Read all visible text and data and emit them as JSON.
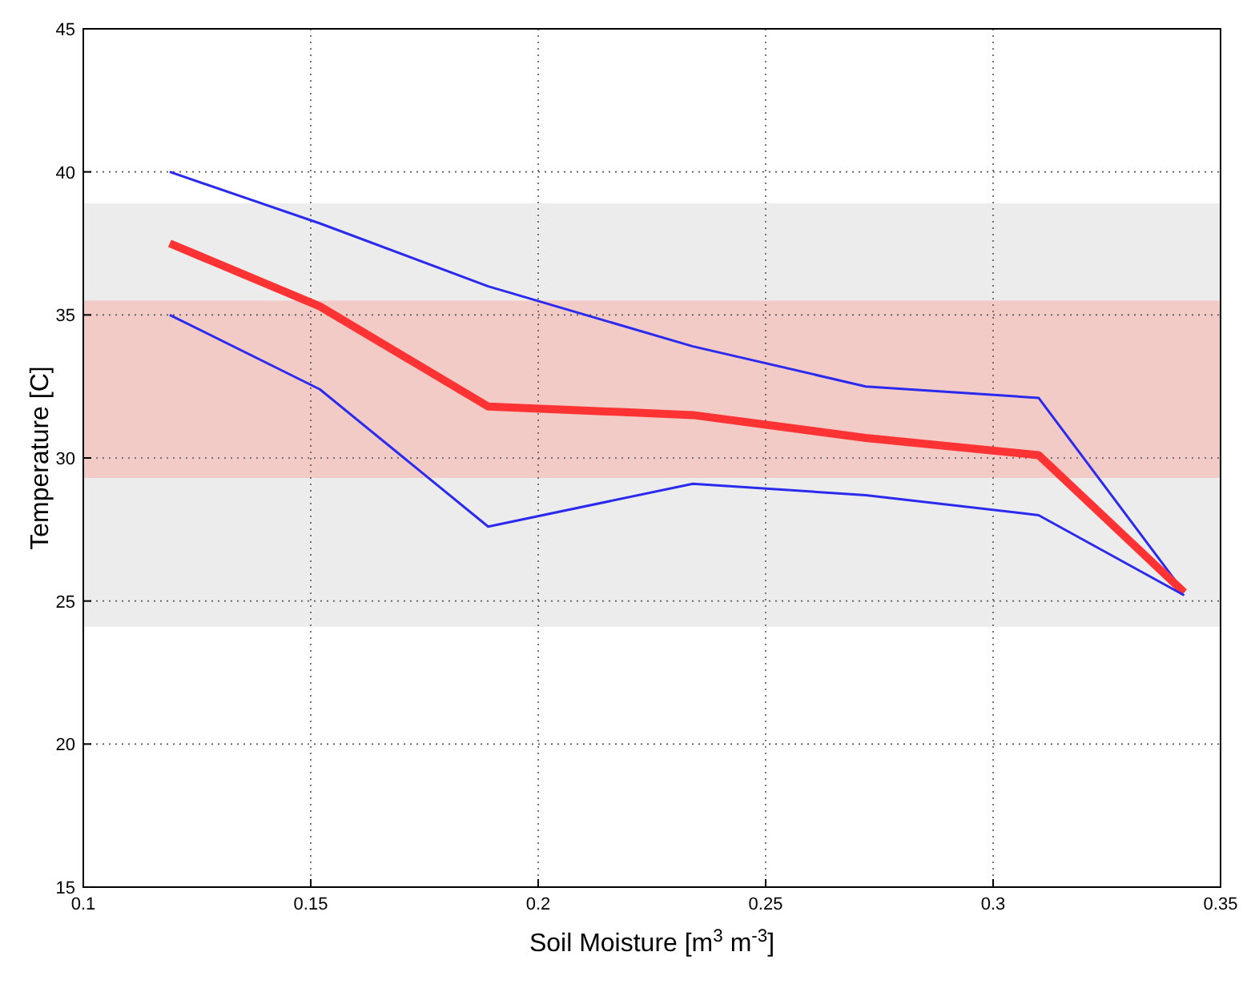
{
  "chart_data": {
    "type": "line",
    "xlabel": "Soil Moisture [m$^{3}$ m$^{-3}$]",
    "ylabel": "Temperature [C]",
    "x": [
      0.119,
      0.152,
      0.189,
      0.234,
      0.272,
      0.31,
      0.342
    ],
    "series": [
      {
        "color": "#2a2aee",
        "values": [
          40.0,
          38.2,
          36.0,
          33.9,
          32.5,
          32.1,
          25.3
        ]
      },
      {
        "color": "#ff3333",
        "values": [
          37.5,
          35.3,
          31.8,
          31.5,
          30.7,
          30.1,
          25.3
        ]
      },
      {
        "color": "#2a2aee",
        "values": [
          35.0,
          32.4,
          27.6,
          29.1,
          28.7,
          28.0,
          25.2
        ]
      }
    ],
    "bands": [
      {
        "axis": "y",
        "from": 24.1,
        "to": 38.9,
        "color": "#ececec"
      },
      {
        "axis": "y",
        "from": 29.3,
        "to": 35.5,
        "color": "#f2cbc6"
      }
    ],
    "xlim": [
      0.1,
      0.35
    ],
    "xticks": [
      0.1,
      0.15,
      0.2,
      0.25,
      0.3,
      0.35
    ],
    "ylim": [
      15,
      45
    ],
    "yticks": [
      15,
      20,
      25,
      30,
      35,
      40,
      45
    ],
    "grid": true,
    "line_style": "solid",
    "marker": "none"
  }
}
